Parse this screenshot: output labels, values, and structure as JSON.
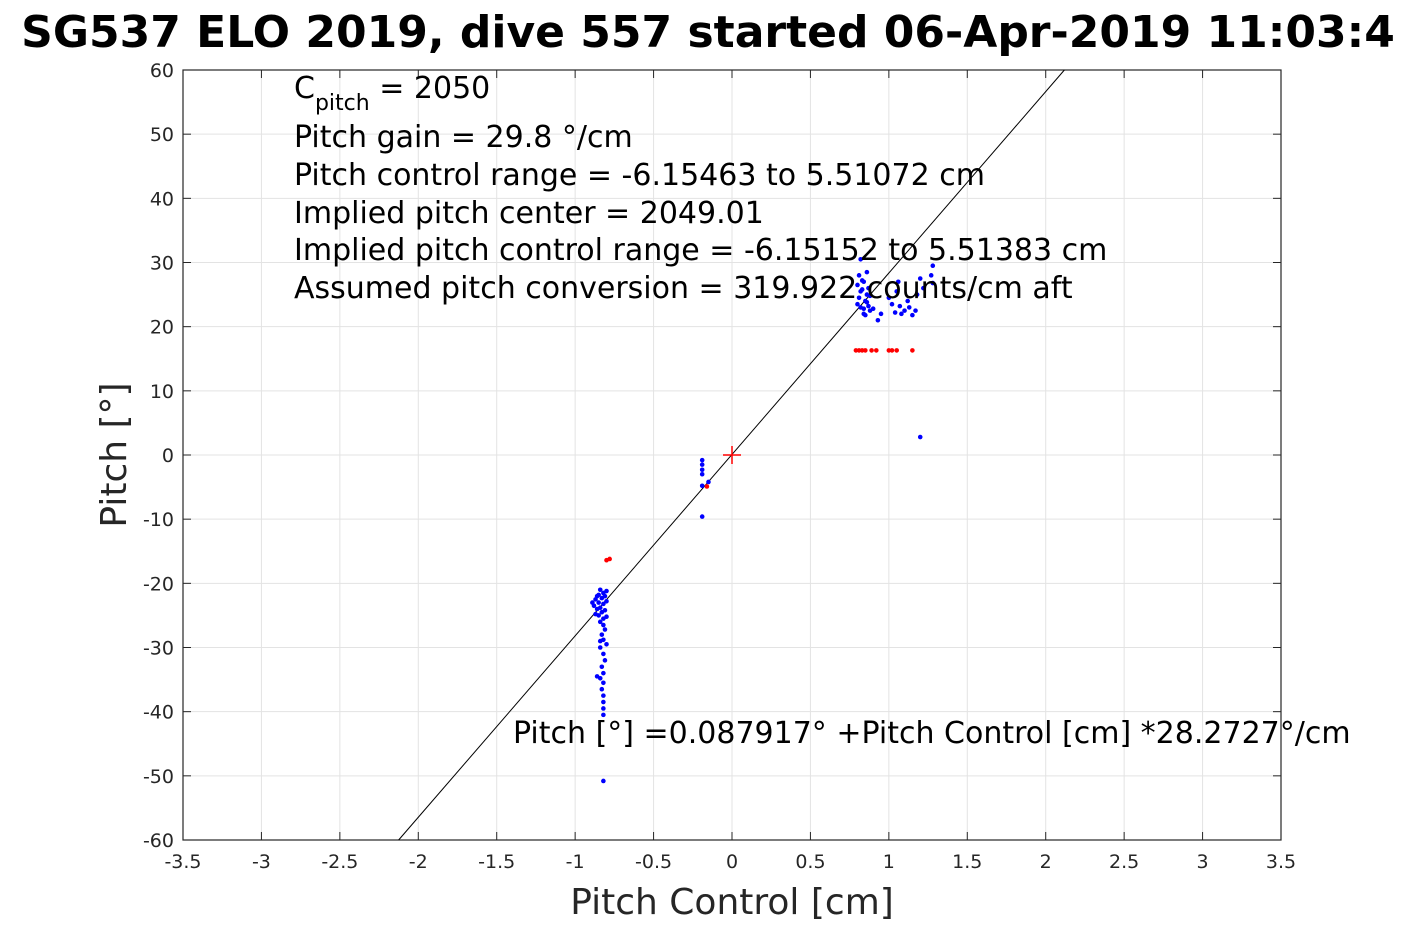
{
  "chart_data": {
    "type": "scatter",
    "title": "SG537 ELO 2019, dive 557 started 06-Apr-2019 11:03:4",
    "xlabel": "Pitch Control [cm]",
    "ylabel": "Pitch [°]",
    "xlim": [
      -3.5,
      3.5
    ],
    "ylim": [
      -60,
      60
    ],
    "x_ticks": [
      -3.5,
      -3,
      -2.5,
      -2,
      -1.5,
      -1,
      -0.5,
      0,
      0.5,
      1,
      1.5,
      2,
      2.5,
      3,
      3.5
    ],
    "x_tick_labels": [
      "-3.5",
      "-3",
      "-2.5",
      "-2",
      "-1.5",
      "-1",
      "-0.5",
      "0",
      "0.5",
      "1",
      "1.5",
      "2",
      "2.5",
      "3",
      "3.5"
    ],
    "y_ticks": [
      60,
      50,
      40,
      30,
      20,
      10,
      0,
      -10,
      -20,
      -30,
      -40,
      -50,
      -60
    ],
    "y_tick_labels": [
      "60",
      "50",
      "40",
      "30",
      "20",
      "10",
      "0",
      "-10",
      "-20",
      "-30",
      "-40",
      "-50",
      "-60"
    ],
    "grid": true,
    "annotations": {
      "c_pitch_symbol": "C",
      "c_pitch_subscript": "pitch",
      "c_pitch_value": " = 2050",
      "pitch_gain": "Pitch gain = 29.8 °/cm",
      "control_range": "Pitch control range = -6.15463 to 5.51072 cm",
      "implied_center": "Implied pitch center = 2049.01",
      "implied_range": "Implied pitch control range = -6.15152 to 5.51383 cm",
      "conversion": "Assumed pitch conversion = 319.922 counts/cm aft",
      "fit_equation": "Pitch [°] =0.087917° +Pitch Control [cm] *28.2727°/cm"
    },
    "fit_line": {
      "intercept": 0.087917,
      "slope": 28.2727,
      "color": "#000000"
    },
    "center_marker": {
      "x": 0,
      "y": 0,
      "color": "#ff0000"
    },
    "series": [
      {
        "color": "#0000ff",
        "points": [
          [
            -0.84,
            -21.0
          ],
          [
            -0.82,
            -21.5
          ],
          [
            -0.8,
            -21.2
          ],
          [
            -0.86,
            -22.0
          ],
          [
            -0.83,
            -22.3
          ],
          [
            -0.81,
            -22.0
          ],
          [
            -0.87,
            -22.5
          ],
          [
            -0.85,
            -23.0
          ],
          [
            -0.82,
            -23.2
          ],
          [
            -0.8,
            -22.8
          ],
          [
            -0.88,
            -23.5
          ],
          [
            -0.86,
            -24.0
          ],
          [
            -0.84,
            -23.8
          ],
          [
            -0.81,
            -24.2
          ],
          [
            -0.83,
            -24.5
          ],
          [
            -0.85,
            -25.0
          ],
          [
            -0.87,
            -24.8
          ],
          [
            -0.82,
            -25.5
          ],
          [
            -0.8,
            -25.2
          ],
          [
            -0.84,
            -26.0
          ],
          [
            -0.82,
            -26.5
          ],
          [
            -0.81,
            -27.2
          ],
          [
            -0.83,
            -28.0
          ],
          [
            -0.82,
            -28.8
          ],
          [
            -0.8,
            -29.5
          ],
          [
            -0.84,
            -30.0
          ],
          [
            -0.82,
            -31.0
          ],
          [
            -0.81,
            -32.0
          ],
          [
            -0.83,
            -33.0
          ],
          [
            -0.82,
            -34.0
          ],
          [
            -0.84,
            -34.8
          ],
          [
            -0.82,
            -35.5
          ],
          [
            -0.83,
            -36.5
          ],
          [
            -0.82,
            -37.5
          ],
          [
            -0.82,
            -38.5
          ],
          [
            -0.82,
            -39.5
          ],
          [
            -0.82,
            -40.5
          ],
          [
            -0.82,
            -50.8
          ],
          [
            -0.89,
            -23.0
          ],
          [
            -0.85,
            -21.8
          ],
          [
            -0.86,
            -34.5
          ],
          [
            -0.84,
            -29.0
          ],
          [
            -0.19,
            -0.8
          ],
          [
            -0.19,
            -1.5
          ],
          [
            -0.19,
            -2.3
          ],
          [
            -0.19,
            -3.0
          ],
          [
            -0.19,
            -4.8
          ],
          [
            -0.15,
            -4.2
          ],
          [
            -0.19,
            -9.6
          ],
          [
            0.8,
            23.5
          ],
          [
            0.81,
            24.5
          ],
          [
            0.82,
            25.5
          ],
          [
            0.8,
            26.5
          ],
          [
            0.83,
            27.2
          ],
          [
            0.81,
            28.0
          ],
          [
            0.84,
            22.8
          ],
          [
            0.85,
            24.0
          ],
          [
            0.86,
            25.0
          ],
          [
            0.82,
            23.0
          ],
          [
            0.87,
            26.0
          ],
          [
            0.84,
            22.0
          ],
          [
            0.86,
            23.8
          ],
          [
            0.88,
            24.8
          ],
          [
            0.85,
            21.8
          ],
          [
            0.83,
            25.8
          ],
          [
            0.82,
            30.5
          ],
          [
            0.86,
            28.5
          ],
          [
            0.88,
            22.5
          ],
          [
            0.84,
            27.0
          ],
          [
            0.87,
            23.2
          ],
          [
            0.9,
            22.8
          ],
          [
            0.93,
            21.0
          ],
          [
            0.95,
            22.0
          ],
          [
            1.0,
            24.5
          ],
          [
            1.02,
            23.5
          ],
          [
            1.04,
            22.2
          ],
          [
            1.05,
            25.5
          ],
          [
            1.06,
            27.0
          ],
          [
            1.07,
            23.2
          ],
          [
            1.08,
            22.0
          ],
          [
            1.1,
            22.5
          ],
          [
            1.12,
            24.0
          ],
          [
            1.13,
            23.0
          ],
          [
            1.15,
            21.8
          ],
          [
            1.17,
            22.5
          ],
          [
            1.18,
            25.0
          ],
          [
            1.2,
            27.5
          ],
          [
            1.22,
            26.0
          ],
          [
            1.27,
            28.0
          ],
          [
            1.28,
            29.5
          ],
          [
            1.28,
            26.8
          ],
          [
            1.2,
            2.8
          ]
        ]
      },
      {
        "color": "#ff0000",
        "points": [
          [
            -0.8,
            -16.4
          ],
          [
            -0.78,
            -16.2
          ],
          [
            -0.16,
            -4.9
          ],
          [
            0.79,
            16.3
          ],
          [
            0.81,
            16.3
          ],
          [
            0.83,
            16.3
          ],
          [
            0.85,
            16.3
          ],
          [
            0.89,
            16.3
          ],
          [
            0.92,
            16.3
          ],
          [
            1.0,
            16.3
          ],
          [
            1.02,
            16.3
          ],
          [
            1.05,
            16.3
          ],
          [
            1.15,
            16.3
          ]
        ]
      }
    ]
  }
}
